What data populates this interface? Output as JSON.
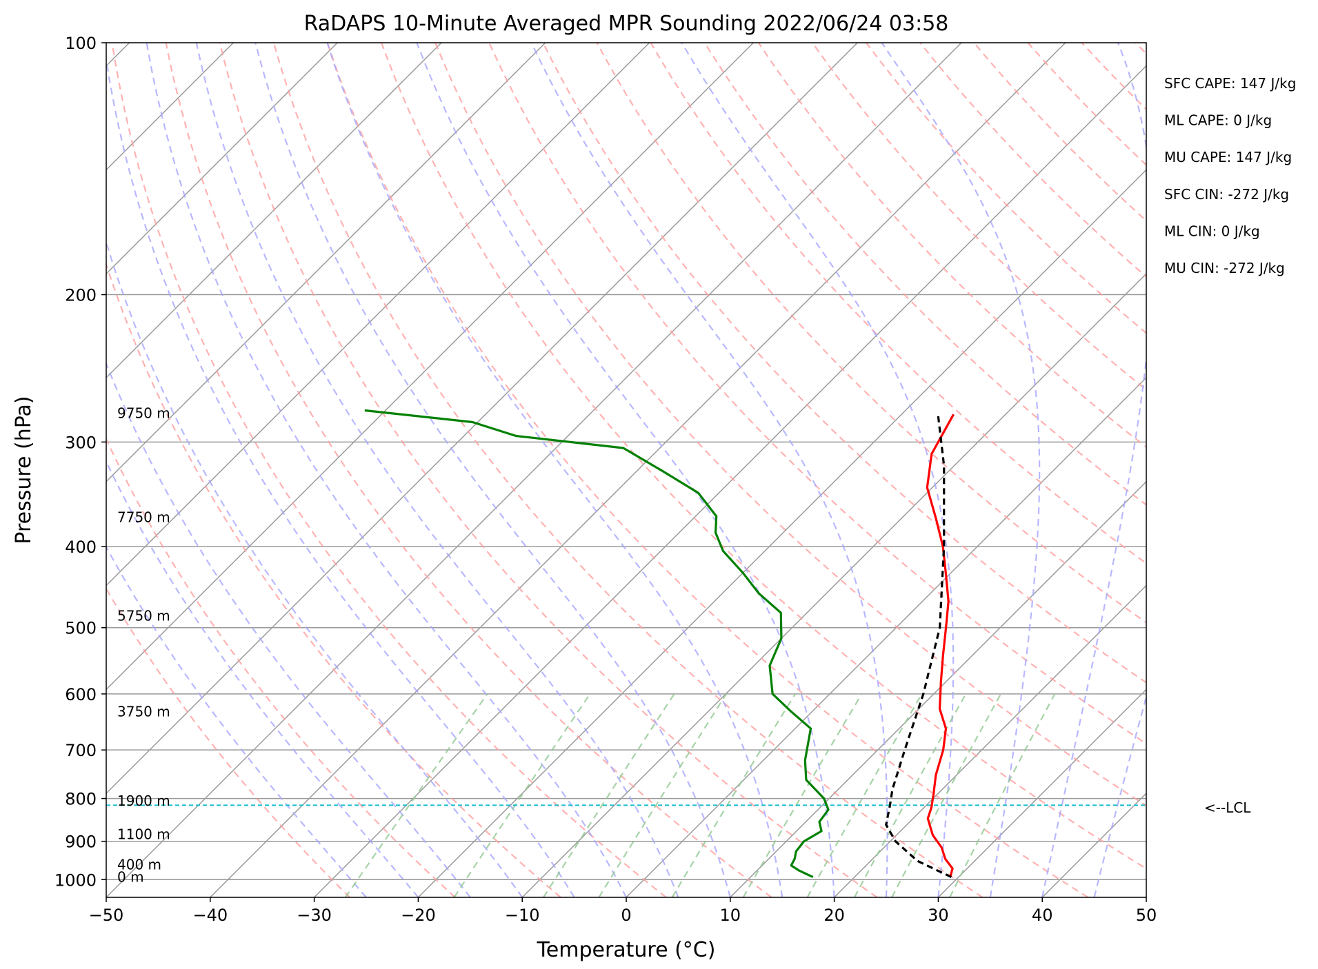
{
  "chart_data": {
    "type": "line",
    "title": "RaDAPS 10-Minute Averaged MPR Sounding 2022/06/24 03:58",
    "xlabel": "Temperature (°C)",
    "ylabel": "Pressure (hPa)",
    "xlim": [
      -50,
      50
    ],
    "ylim": [
      1050,
      100
    ],
    "y_scale": "log",
    "skew_degrees": 45,
    "grid": true,
    "x_ticks": [
      -50,
      -40,
      -30,
      -20,
      -10,
      0,
      10,
      20,
      30,
      40,
      50
    ],
    "x_tick_labels": [
      "−50",
      "−40",
      "−30",
      "−20",
      "−10",
      "0",
      "10",
      "20",
      "30",
      "40",
      "50"
    ],
    "y_ticks": [
      100,
      200,
      300,
      400,
      500,
      600,
      700,
      800,
      900,
      1000
    ],
    "y_tick_labels": [
      "100",
      "200",
      "300",
      "400",
      "500",
      "600",
      "700",
      "800",
      "900",
      "1000"
    ],
    "colors": {
      "temperature": "#ff0000",
      "dewpoint": "#008000",
      "parcel": "#000000",
      "dry_adiabats": "#ff9f9f",
      "moist_adiabats": "#a6a6ff",
      "mixing_ratio": "#90c890",
      "isotherms": "#9a9a9a",
      "lcl": "#17becf"
    },
    "series": [
      {
        "key": "temperature",
        "points": [
          {
            "p": 993,
            "t": 29.2
          },
          {
            "p": 970,
            "t": 28.6
          },
          {
            "p": 945,
            "t": 27.0
          },
          {
            "p": 915,
            "t": 25.5
          },
          {
            "p": 885,
            "t": 23.5
          },
          {
            "p": 862,
            "t": 22.3
          },
          {
            "p": 845,
            "t": 21.4
          },
          {
            "p": 820,
            "t": 20.7
          },
          {
            "p": 790,
            "t": 19.6
          },
          {
            "p": 750,
            "t": 18.0
          },
          {
            "p": 700,
            "t": 16.3
          },
          {
            "p": 660,
            "t": 14.5
          },
          {
            "p": 625,
            "t": 12.0
          },
          {
            "p": 580,
            "t": 9.5
          },
          {
            "p": 540,
            "t": 7.2
          },
          {
            "p": 500,
            "t": 4.8
          },
          {
            "p": 465,
            "t": 2.5
          },
          {
            "p": 430,
            "t": -0.5
          },
          {
            "p": 400,
            "t": -3.3
          },
          {
            "p": 370,
            "t": -6.7
          },
          {
            "p": 340,
            "t": -10.5
          },
          {
            "p": 310,
            "t": -13.3
          },
          {
            "p": 278,
            "t": -15.0
          }
        ]
      },
      {
        "key": "dewpoint",
        "points": [
          {
            "p": 993,
            "t": 16.0
          },
          {
            "p": 975,
            "t": 14.0
          },
          {
            "p": 962,
            "t": 12.8
          },
          {
            "p": 945,
            "t": 12.5
          },
          {
            "p": 925,
            "t": 11.9
          },
          {
            "p": 900,
            "t": 11.7
          },
          {
            "p": 875,
            "t": 12.4
          },
          {
            "p": 853,
            "t": 11.3
          },
          {
            "p": 825,
            "t": 11.0
          },
          {
            "p": 800,
            "t": 9.5
          },
          {
            "p": 760,
            "t": 6.0
          },
          {
            "p": 720,
            "t": 4.0
          },
          {
            "p": 660,
            "t": 1.5
          },
          {
            "p": 630,
            "t": -2.0
          },
          {
            "p": 600,
            "t": -5.5
          },
          {
            "p": 555,
            "t": -8.5
          },
          {
            "p": 515,
            "t": -10.0
          },
          {
            "p": 480,
            "t": -12.5
          },
          {
            "p": 455,
            "t": -16.5
          },
          {
            "p": 430,
            "t": -20.0
          },
          {
            "p": 405,
            "t": -24.0
          },
          {
            "p": 385,
            "t": -26.5
          },
          {
            "p": 368,
            "t": -28.0
          },
          {
            "p": 345,
            "t": -32.0
          },
          {
            "p": 325,
            "t": -37.5
          },
          {
            "p": 305,
            "t": -43.5
          },
          {
            "p": 295,
            "t": -55.0
          },
          {
            "p": 284,
            "t": -60.5
          },
          {
            "p": 275,
            "t": -72.0
          }
        ]
      },
      {
        "key": "parcel",
        "points": [
          {
            "p": 993,
            "t": 29.3
          },
          {
            "p": 950,
            "t": 24.5
          },
          {
            "p": 900,
            "t": 20.5
          },
          {
            "p": 860,
            "t": 18.0
          },
          {
            "p": 815,
            "t": 16.5
          },
          {
            "p": 780,
            "t": 15.2
          },
          {
            "p": 700,
            "t": 12.6
          },
          {
            "p": 600,
            "t": 9.0
          },
          {
            "p": 500,
            "t": 4.2
          },
          {
            "p": 400,
            "t": -3.2
          },
          {
            "p": 320,
            "t": -11.0
          },
          {
            "p": 278,
            "t": -16.5
          }
        ]
      }
    ],
    "lcl": {
      "pressure": 815,
      "label": "<--LCL"
    },
    "height_labels": [
      {
        "p": 993,
        "text": "0 m"
      },
      {
        "p": 960,
        "text": "400 m"
      },
      {
        "p": 883,
        "text": "1100 m"
      },
      {
        "p": 805,
        "text": "1900 m"
      },
      {
        "p": 630,
        "text": "3750 m"
      },
      {
        "p": 484,
        "text": "5750 m"
      },
      {
        "p": 369,
        "text": "7750 m"
      },
      {
        "p": 277,
        "text": "9750 m"
      }
    ],
    "indices": [
      "SFC CAPE: 147 J/kg",
      "ML CAPE: 0 J/kg",
      "MU CAPE: 147 J/kg",
      "SFC CIN: -272 J/kg",
      "ML CIN: 0 J/kg",
      "MU CIN: -272 J/kg"
    ]
  }
}
